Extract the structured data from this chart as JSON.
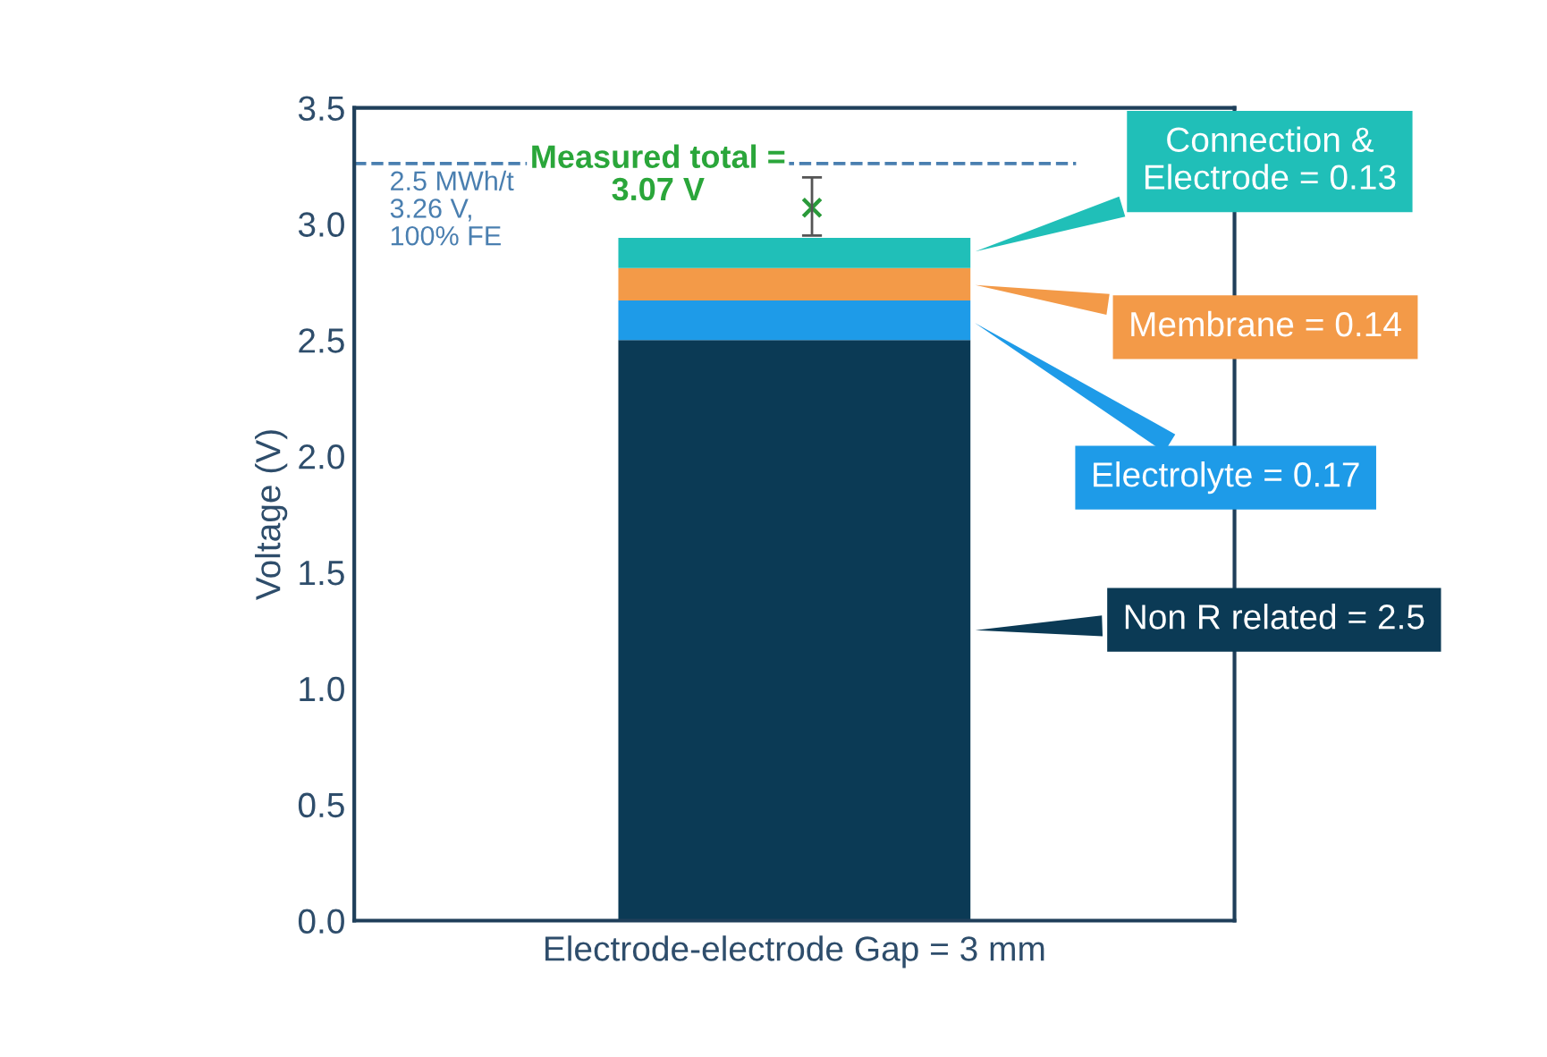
{
  "chart_data": {
    "type": "bar",
    "stacked": true,
    "categories": [
      "Electrode-electrode Gap = 3 mm"
    ],
    "ylabel": "Voltage (V)",
    "ylim": [
      0,
      3.5
    ],
    "yticks": [
      {
        "value": 0,
        "label": "0.0"
      },
      {
        "value": 0.5,
        "label": "0.5"
      },
      {
        "value": 1,
        "label": "1.0"
      },
      {
        "value": 1.5,
        "label": "1.5"
      },
      {
        "value": 2,
        "label": "2.0"
      },
      {
        "value": 2.5,
        "label": "2.5"
      },
      {
        "value": 3,
        "label": "3.0"
      },
      {
        "value": 3.5,
        "label": "3.5"
      }
    ],
    "series": [
      {
        "name": "Non R related = 2.5",
        "color": "#0b3a55",
        "values": [
          2.5
        ]
      },
      {
        "name": "Electrolyte = 0.17",
        "color": "#1e9be8",
        "values": [
          0.17
        ]
      },
      {
        "name": "Membrane = 0.14",
        "color": "#f39a48",
        "values": [
          0.14
        ]
      },
      {
        "name": "Connection &\nElectrode = 0.13",
        "color": "#20bfb8",
        "values": [
          0.13
        ]
      },
      {
        "type": "scatter",
        "color": "#2a9a3a",
        "values": [
          3.07
        ],
        "x": [
          "Electrode-electrode Gap = 3 mm"
        ],
        "errors": [
          [
            2.95,
            3.2
          ]
        ]
      }
    ],
    "marker": "cross",
    "ref_lines": [
      {
        "axis": "y",
        "value": 3.26,
        "label": "2.5 MWh/t\n3.26 V,\n100% FE",
        "color": "#4a7fb0",
        "line_style": "dashed"
      }
    ],
    "annotations": [
      "Measured total =\n3.07 V"
    ],
    "legend": "right",
    "grid": false
  }
}
